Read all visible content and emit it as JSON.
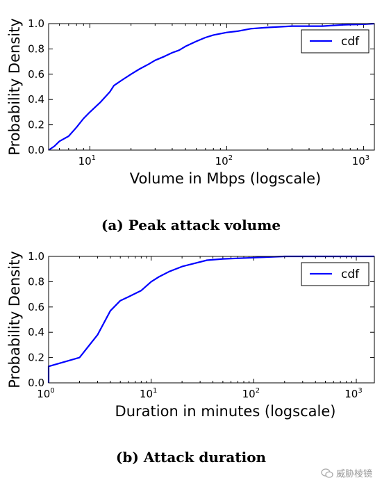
{
  "chart_data": [
    {
      "type": "line",
      "xscale": "log",
      "xlim": [
        5,
        1200
      ],
      "ylim": [
        0,
        1.0
      ],
      "xticks": [
        10,
        100,
        1000
      ],
      "yticks": [
        0.0,
        0.2,
        0.4,
        0.6,
        0.8,
        1.0
      ],
      "ytick_labels": [
        "0.0",
        "0.2",
        "0.4",
        "0.6",
        "0.8",
        "1.0"
      ],
      "xlabel": "Volume in Mbps (logscale)",
      "ylabel": "Probability Density",
      "legend": "top-right",
      "grid": false,
      "series": [
        {
          "name": "cdf",
          "color": "#0000ff",
          "x": [
            5,
            5.5,
            6,
            7,
            8,
            9,
            10,
            12,
            14,
            15,
            17,
            20,
            23,
            27,
            30,
            35,
            40,
            45,
            50,
            60,
            70,
            80,
            100,
            120,
            150,
            200,
            300,
            500,
            700,
            1000,
            1200
          ],
          "y": [
            0.0,
            0.03,
            0.07,
            0.11,
            0.18,
            0.25,
            0.3,
            0.38,
            0.46,
            0.51,
            0.55,
            0.6,
            0.64,
            0.68,
            0.71,
            0.74,
            0.77,
            0.79,
            0.82,
            0.86,
            0.89,
            0.91,
            0.93,
            0.94,
            0.96,
            0.97,
            0.98,
            0.98,
            0.99,
            0.995,
            1.0
          ]
        }
      ]
    },
    {
      "type": "line",
      "xscale": "log",
      "xlim": [
        1,
        1500
      ],
      "ylim": [
        0,
        1.0
      ],
      "xticks": [
        1,
        10,
        100,
        1000
      ],
      "yticks": [
        0.0,
        0.2,
        0.4,
        0.6,
        0.8,
        1.0
      ],
      "ytick_labels": [
        "0.0",
        "0.2",
        "0.4",
        "0.6",
        "0.8",
        "1.0"
      ],
      "xlabel": "Duration in minutes (logscale)",
      "ylabel": "Probability Density",
      "legend": "top-right",
      "grid": false,
      "series": [
        {
          "name": "cdf",
          "color": "#0000ff",
          "x": [
            1,
            1,
            2,
            3,
            4,
            5,
            6,
            8,
            10,
            12,
            15,
            20,
            25,
            35,
            50,
            100,
            200,
            1000,
            1500
          ],
          "y": [
            0.0,
            0.13,
            0.2,
            0.38,
            0.57,
            0.65,
            0.68,
            0.73,
            0.8,
            0.84,
            0.88,
            0.92,
            0.94,
            0.97,
            0.98,
            0.99,
            1.0,
            1.0,
            1.0
          ]
        }
      ]
    }
  ],
  "captions": {
    "a": "(a) Peak attack volume",
    "b": "(b) Attack duration"
  },
  "watermark": "威胁棱镜",
  "watermark_icon": "wechat-icon"
}
